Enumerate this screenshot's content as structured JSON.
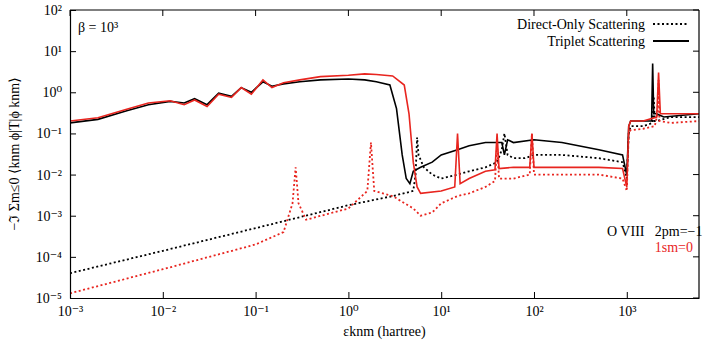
{
  "chart_data": {
    "type": "line",
    "x_label": "εknm (hartree)",
    "y_label": "−ℑ Σm≤0 ⟨knm ϕ|T|ϕ knm⟩",
    "log": true,
    "grid": false,
    "legend": "upper right",
    "xlim": [
      0.001,
      6000
    ],
    "ylim": [
      1e-05,
      100
    ],
    "xticks": [
      {
        "value": 0.001,
        "label": "10⁻³"
      },
      {
        "value": 0.01,
        "label": "10⁻²"
      },
      {
        "value": 0.1,
        "label": "10⁻¹"
      },
      {
        "value": 1,
        "label": "10⁰"
      },
      {
        "value": 10,
        "label": "10¹"
      },
      {
        "value": 100,
        "label": "10²"
      },
      {
        "value": 1000,
        "label": "10³"
      }
    ],
    "yticks": [
      {
        "value": 1e-05,
        "label": "10⁻⁵"
      },
      {
        "value": 0.0001,
        "label": "10⁻⁴"
      },
      {
        "value": 0.001,
        "label": "10⁻³"
      },
      {
        "value": 0.01,
        "label": "10⁻²"
      },
      {
        "value": 0.1,
        "label": "10⁻¹"
      },
      {
        "value": 1,
        "label": "10⁰"
      },
      {
        "value": 10,
        "label": "10¹"
      },
      {
        "value": 100,
        "label": "10²"
      }
    ],
    "annotations": [
      {
        "text": "β = 10³",
        "color": "#000000"
      },
      {
        "text": "O VIII",
        "color": "#000000"
      },
      {
        "text": "2pm=−1",
        "color": "#000000"
      },
      {
        "text": "1sm=0",
        "color": "#e8251f"
      }
    ],
    "series": [
      {
        "name": "Direct-Only Scattering",
        "color": "#000000",
        "line_style": "dotted",
        "x": [
          0.001,
          0.01,
          0.1,
          1,
          3,
          5,
          5.3,
          5.5,
          5.7,
          6.5,
          8,
          10,
          15,
          20,
          30,
          40,
          45,
          48,
          52,
          60,
          80,
          100,
          200,
          500,
          900,
          980,
          1000,
          1050,
          1100,
          1500,
          1900,
          1950,
          2000,
          2100,
          3000,
          6000
        ],
        "values": [
          4e-05,
          0.00014,
          0.0005,
          0.0018,
          0.003,
          0.004,
          0.01,
          0.08,
          0.03,
          0.015,
          0.01,
          0.008,
          0.01,
          0.012,
          0.015,
          0.02,
          0.04,
          0.1,
          0.03,
          0.025,
          0.025,
          0.03,
          0.03,
          0.025,
          0.02,
          0.01,
          0.008,
          0.1,
          0.15,
          0.15,
          0.18,
          0.8,
          0.2,
          0.2,
          0.25,
          0.25
        ]
      },
      {
        "color": "#e8251f",
        "line_style": "dotted",
        "x": [
          0.001,
          0.01,
          0.1,
          0.2,
          0.25,
          0.27,
          0.29,
          0.35,
          1,
          1.6,
          1.75,
          1.9,
          3,
          5,
          6,
          8,
          10,
          15,
          20,
          30,
          38,
          40,
          42,
          60,
          90,
          95,
          100,
          110,
          200,
          500,
          900,
          1000,
          1050,
          1100,
          1500,
          2000,
          2150,
          2200,
          2250,
          3000,
          6000
        ],
        "values": [
          1.3e-05,
          5e-05,
          0.0002,
          0.0004,
          0.002,
          0.015,
          0.002,
          0.0008,
          0.0015,
          0.004,
          0.06,
          0.004,
          0.003,
          0.0015,
          0.001,
          0.0012,
          0.002,
          0.003,
          0.0035,
          0.005,
          0.007,
          0.05,
          0.008,
          0.008,
          0.01,
          0.1,
          0.01,
          0.01,
          0.01,
          0.01,
          0.008,
          0.004,
          0.1,
          0.12,
          0.13,
          0.15,
          0.3,
          2,
          0.2,
          0.18,
          0.2
        ]
      },
      {
        "name": "Triplet Scattering",
        "color": "#000000",
        "line_style": "solid",
        "x": [
          0.001,
          0.002,
          0.004,
          0.007,
          0.012,
          0.017,
          0.022,
          0.03,
          0.04,
          0.055,
          0.07,
          0.09,
          0.12,
          0.15,
          0.2,
          0.3,
          0.5,
          1,
          1.5,
          2,
          2.8,
          3.3,
          3.8,
          4.2,
          4.6,
          5,
          6,
          8,
          10,
          15,
          20,
          30,
          45,
          48,
          52,
          60,
          100,
          200,
          500,
          900,
          980,
          1000,
          1050,
          1100,
          1500,
          1850,
          1900,
          1950,
          2100,
          2500,
          6000
        ],
        "values": [
          0.18,
          0.22,
          0.35,
          0.5,
          0.6,
          0.55,
          0.7,
          0.5,
          0.95,
          0.8,
          1.3,
          1.0,
          1.8,
          1.4,
          1.6,
          1.8,
          2.0,
          2.1,
          2.0,
          1.8,
          1.5,
          0.4,
          0.03,
          0.008,
          0.006,
          0.012,
          0.015,
          0.02,
          0.03,
          0.04,
          0.05,
          0.06,
          0.06,
          0.03,
          0.07,
          0.06,
          0.07,
          0.06,
          0.04,
          0.03,
          0.012,
          0.01,
          0.15,
          0.2,
          0.2,
          0.2,
          5,
          0.3,
          0.3,
          0.25,
          0.3
        ]
      },
      {
        "color": "#e8251f",
        "line_style": "solid",
        "x": [
          0.001,
          0.002,
          0.004,
          0.007,
          0.012,
          0.017,
          0.022,
          0.03,
          0.04,
          0.055,
          0.07,
          0.09,
          0.12,
          0.15,
          0.2,
          0.3,
          0.5,
          1,
          1.5,
          2,
          3,
          4,
          4.5,
          5,
          5.5,
          6,
          10,
          14,
          15,
          16,
          20,
          30,
          38,
          40,
          42,
          60,
          90,
          95,
          100,
          200,
          500,
          900,
          1000,
          1050,
          1100,
          1500,
          2100,
          2200,
          2300,
          3000,
          6000
        ],
        "values": [
          0.2,
          0.24,
          0.38,
          0.55,
          0.62,
          0.5,
          0.65,
          0.45,
          0.9,
          0.75,
          1.3,
          0.9,
          2.0,
          1.3,
          1.7,
          2.0,
          2.4,
          2.6,
          2.8,
          2.7,
          2.5,
          1.5,
          0.3,
          0.02,
          0.005,
          0.0035,
          0.004,
          0.005,
          0.1,
          0.006,
          0.008,
          0.012,
          0.013,
          0.1,
          0.014,
          0.015,
          0.015,
          0.1,
          0.015,
          0.015,
          0.015,
          0.014,
          0.005,
          0.15,
          0.2,
          0.2,
          0.25,
          3,
          0.3,
          0.3,
          0.3
        ]
      }
    ]
  }
}
